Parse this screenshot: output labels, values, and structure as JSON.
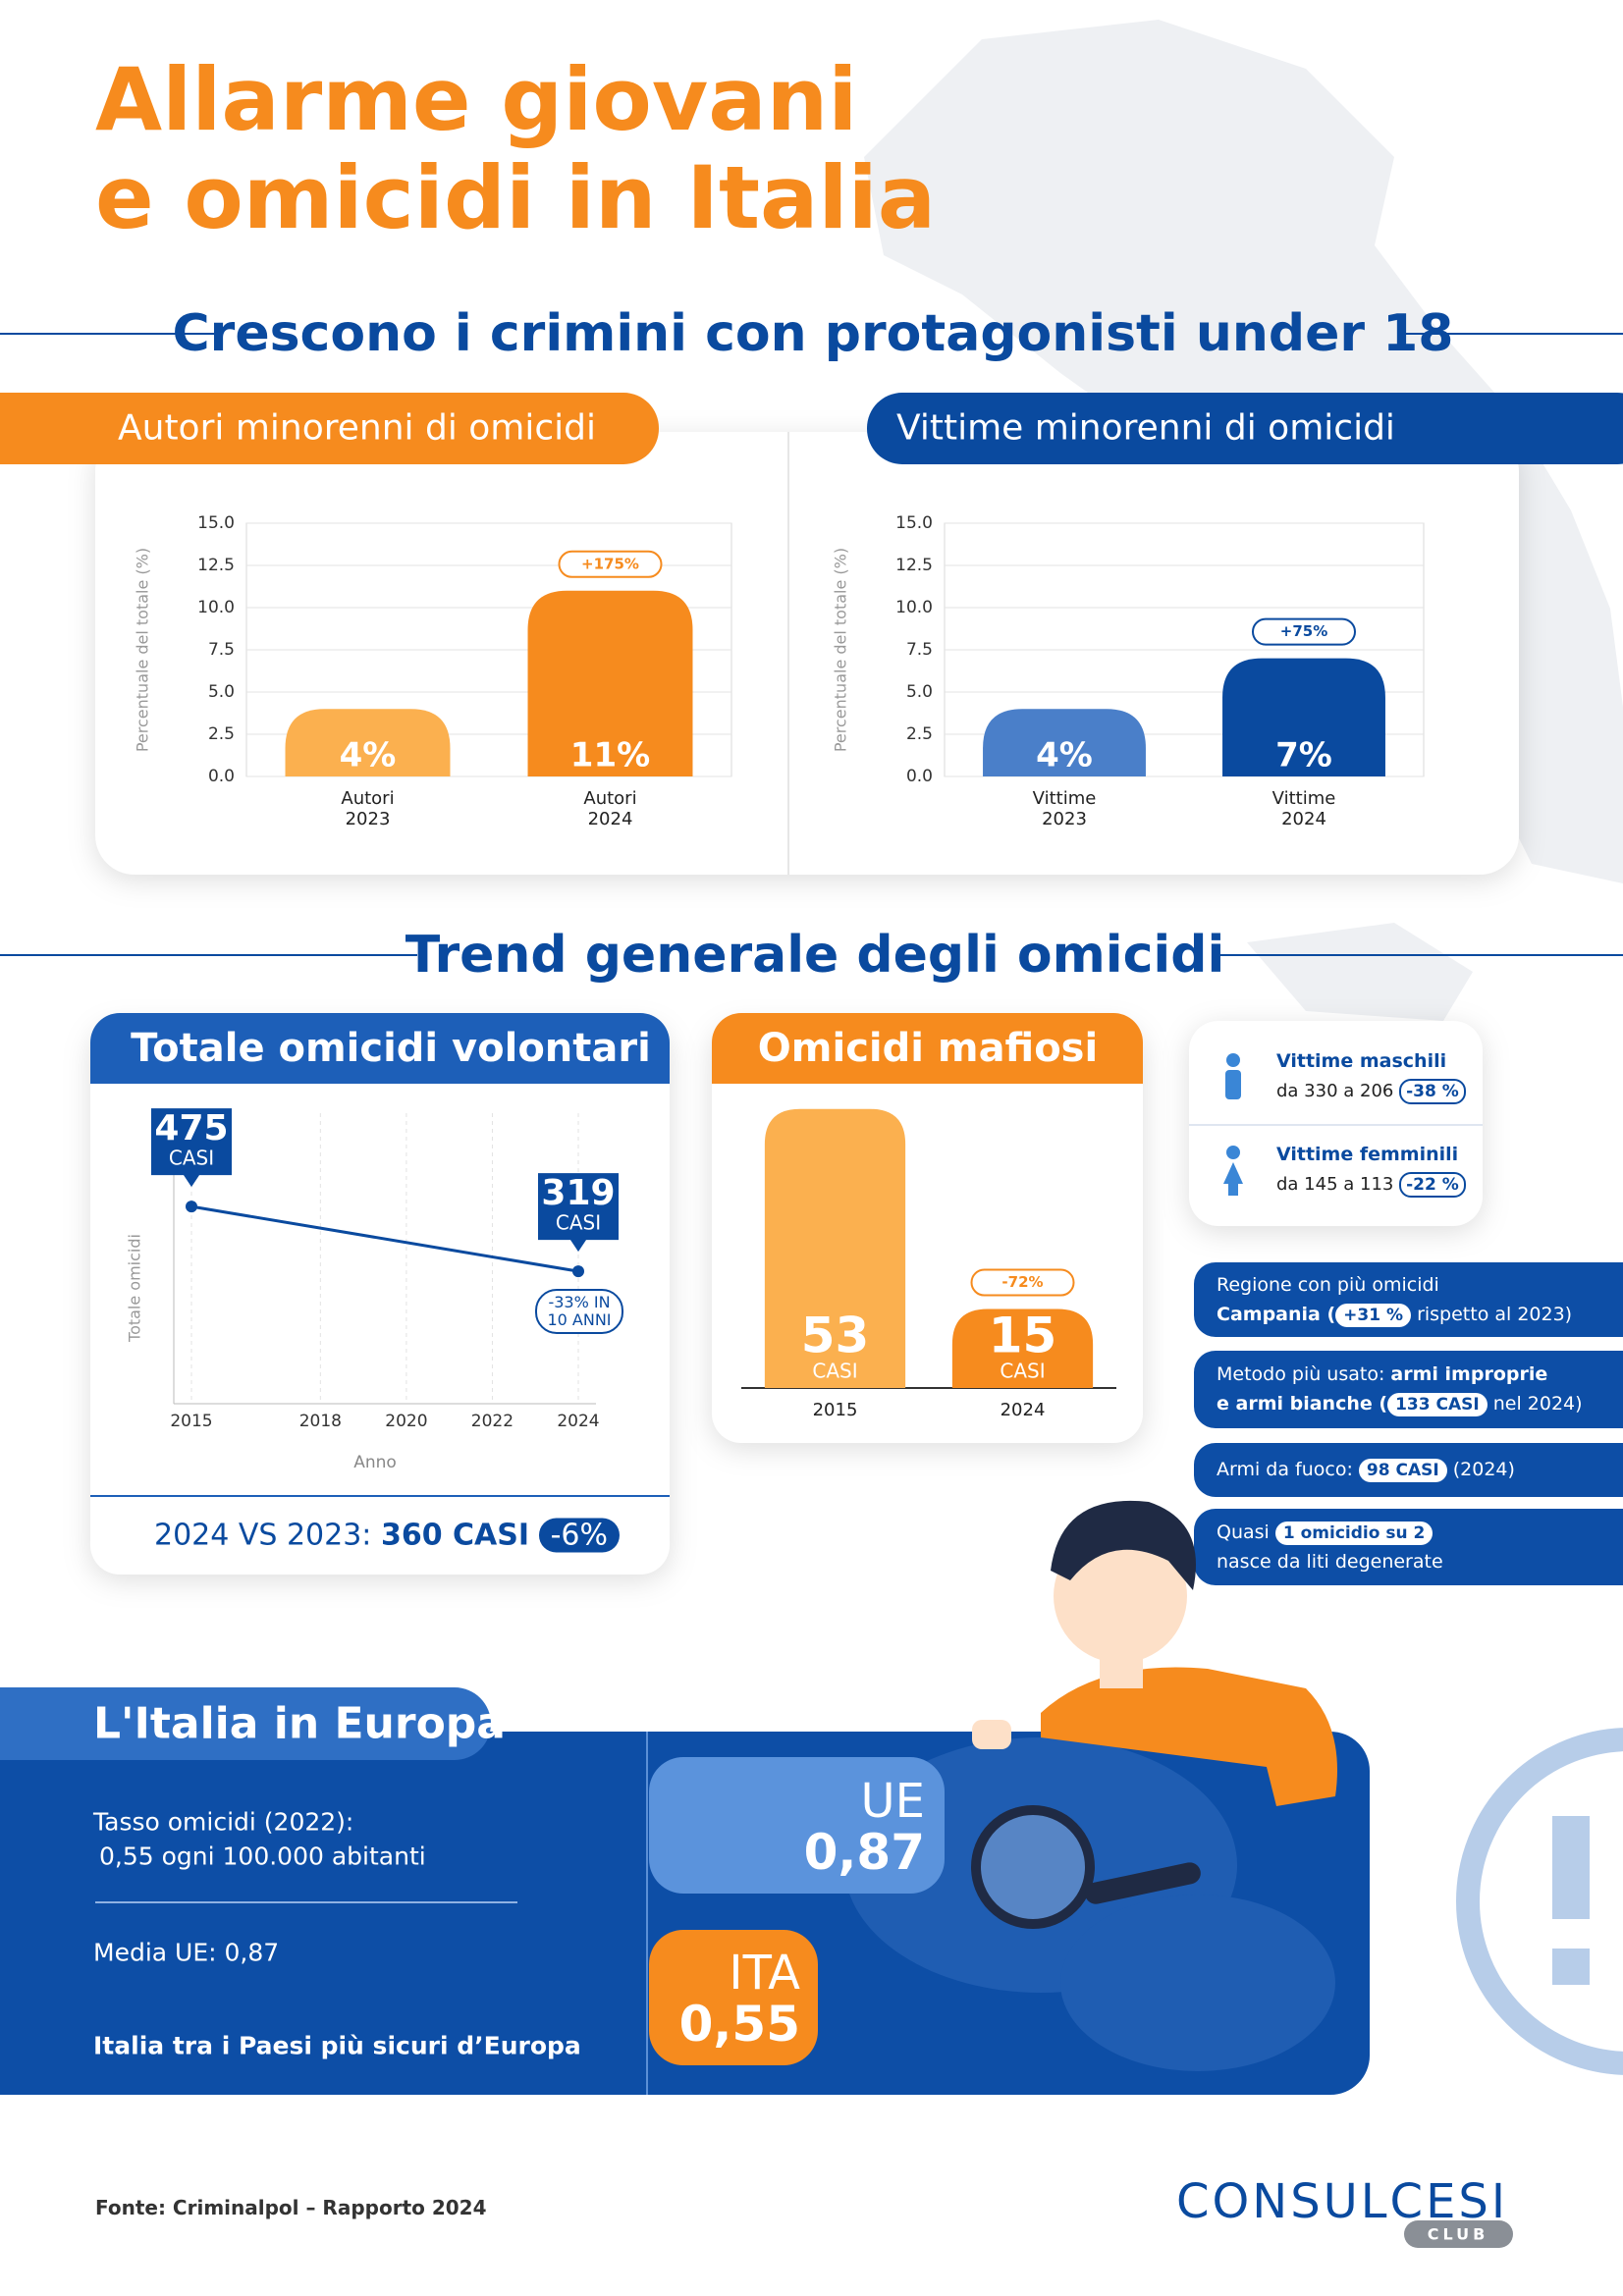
{
  "header": {
    "title_line1": "Allarme giovani",
    "title_line2": "e omicidi in Italia"
  },
  "sections": {
    "minors": "Crescono i crimini con protagonisti under 18",
    "trend": "Trend generale degli omicidi"
  },
  "chart_data": [
    {
      "type": "bar",
      "title": "Autori minorenni di omicidi",
      "y_label": "Percentuale del totale (%)",
      "categories": [
        "Autori 2023",
        "Autori 2024"
      ],
      "values": [
        4,
        11
      ],
      "value_labels": [
        "4%",
        "11%"
      ],
      "colors": [
        "#fbb04f",
        "#f68b1e"
      ],
      "ylim": [
        0,
        15
      ],
      "yticks": [
        {
          "value": 0,
          "label": "0.0"
        },
        2.5,
        {
          "value": 5,
          "label": "5.0"
        },
        7.5,
        {
          "value": 10,
          "label": "10.0"
        },
        12.5,
        {
          "value": 15,
          "label": "15.0"
        }
      ],
      "grid": true,
      "annotation": "+175%"
    },
    {
      "type": "bar",
      "title": "Vittime minorenni di omicidi",
      "y_label": "Percentuale del totale (%)",
      "categories": [
        "Vittime 2023",
        "Vittime 2024"
      ],
      "values": [
        4,
        7
      ],
      "value_labels": [
        "4%",
        "7%"
      ],
      "colors": [
        "#4a7fc9",
        "#0a4a9f"
      ],
      "ylim": [
        0,
        15
      ],
      "yticks": [
        {
          "value": 0,
          "label": "0.0"
        },
        2.5,
        {
          "value": 5,
          "label": "5.0"
        },
        7.5,
        {
          "value": 10,
          "label": "10.0"
        },
        12.5,
        {
          "value": 15,
          "label": "15.0"
        }
      ],
      "grid": true,
      "annotation": "+75%"
    },
    {
      "type": "line",
      "title": "Totale omicidi volontari",
      "x_label": "Anno",
      "y_label": "Totale omicidi",
      "x": [
        2015,
        2024
      ],
      "values": [
        475,
        319
      ],
      "unit_label": "CASI",
      "color": "#0a4a9f",
      "xlim": [
        2015,
        2024
      ],
      "xticks": [
        2015,
        2018,
        2020,
        2022,
        2024
      ],
      "ylim": [
        0,
        700
      ],
      "annotation": "-33% IN 10 ANNI",
      "footer": {
        "label": "2024 VS 2023:",
        "value": "360 CASI",
        "change": "-6%"
      }
    },
    {
      "type": "bar",
      "title": "Omicidi mafiosi",
      "categories": [
        "2015",
        "2024"
      ],
      "values": [
        53,
        15
      ],
      "unit_label": "CASI",
      "colors": [
        "#fbb04f",
        "#f68b1e"
      ],
      "ylim": [
        0,
        55
      ],
      "annotation": "-72%"
    }
  ],
  "victims": [
    {
      "title": "Vittime maschili",
      "detail": "da 330 a 206",
      "change": "-38 %"
    },
    {
      "title": "Vittime femminili",
      "detail": "da 145 a 113",
      "change": "-22 %"
    }
  ],
  "facts": [
    {
      "line1": "Regione con più omicidi",
      "bold": "Campania (",
      "badge": "+31 %",
      "after": "rispetto al 2023)"
    },
    {
      "lead": "Metodo più usato:",
      "bold1": "armi improprie",
      "bold2": "e armi bianche (",
      "badge": "133 CASI",
      "after": "nel 2024)"
    },
    {
      "lead": "Armi da fuoco:",
      "badge": "98 CASI",
      "after": "(2024)"
    },
    {
      "lead": "Quasi",
      "badge": "1 omicidio su 2",
      "line2": "nasce da liti degenerate"
    }
  ],
  "europe": {
    "title": "L'Italia in Europa",
    "rate_label": "Tasso omicidi (2022):",
    "rate_value": "0,55 ogni 100.000 abitanti",
    "eu_average": "Media UE: 0,87",
    "conclusion": "Italia tra i Paesi più sicuri d’Europa",
    "eu": {
      "label": "UE",
      "value": "0,87"
    },
    "italy": {
      "label": "ITA",
      "value": "0,55"
    }
  },
  "footer": {
    "source": "Fonte: Criminalpol – Rapporto 2024",
    "logo": "CONSULCESI",
    "logo_sub": "CLUB"
  }
}
